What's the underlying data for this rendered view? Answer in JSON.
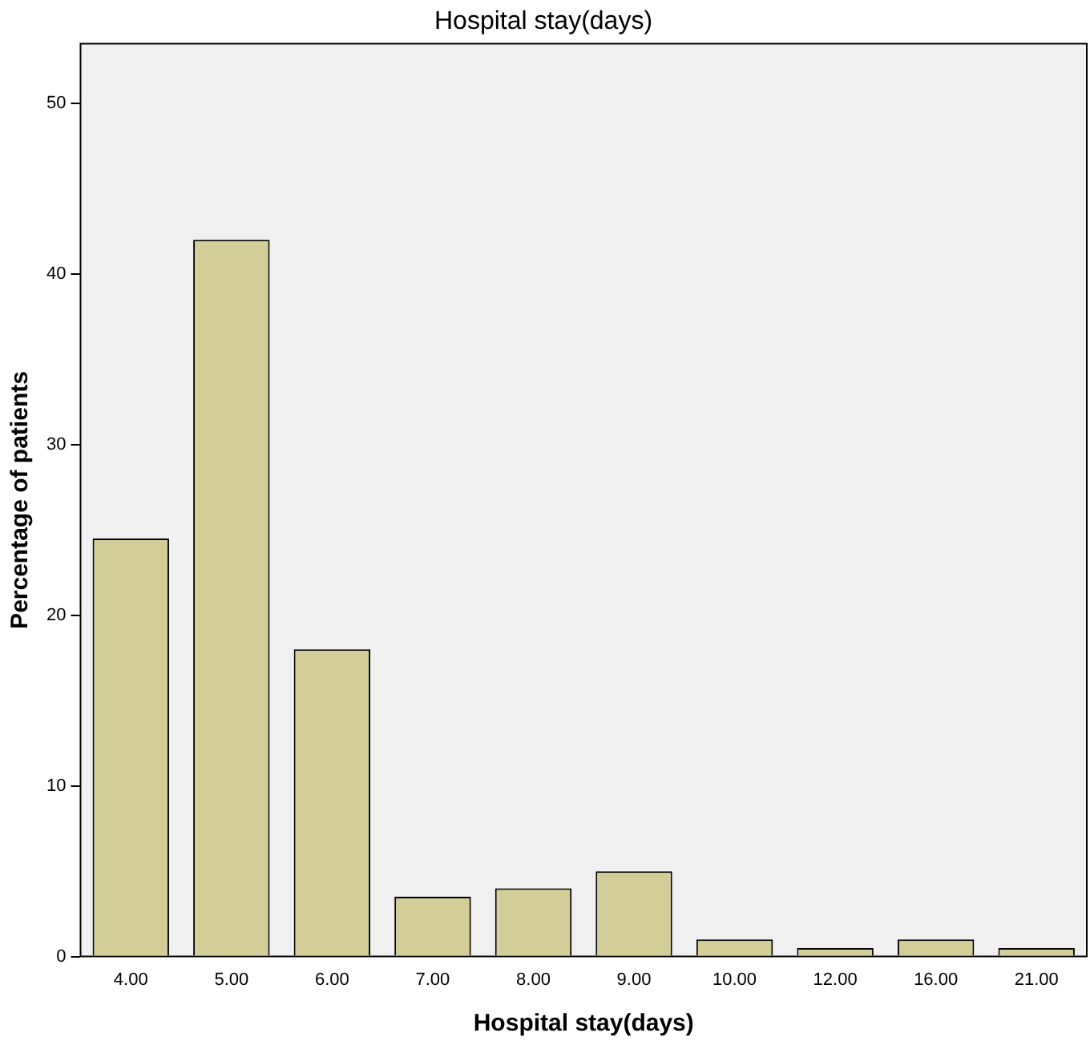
{
  "chart_data": {
    "type": "bar",
    "title": "Hospital stay(days)",
    "xlabel": "Hospital stay(days)",
    "ylabel": "Percentage of patients",
    "categories": [
      "4.00",
      "5.00",
      "6.00",
      "7.00",
      "8.00",
      "9.00",
      "10.00",
      "12.00",
      "16.00",
      "21.00"
    ],
    "values": [
      24.5,
      42,
      18,
      3.5,
      4,
      5,
      1,
      0.5,
      1,
      0.5
    ],
    "color": "#d3ce97",
    "ylim": [
      0,
      53.5
    ],
    "yticks": [
      0,
      10,
      20,
      30,
      40,
      50
    ],
    "grid": false,
    "legend": false
  }
}
